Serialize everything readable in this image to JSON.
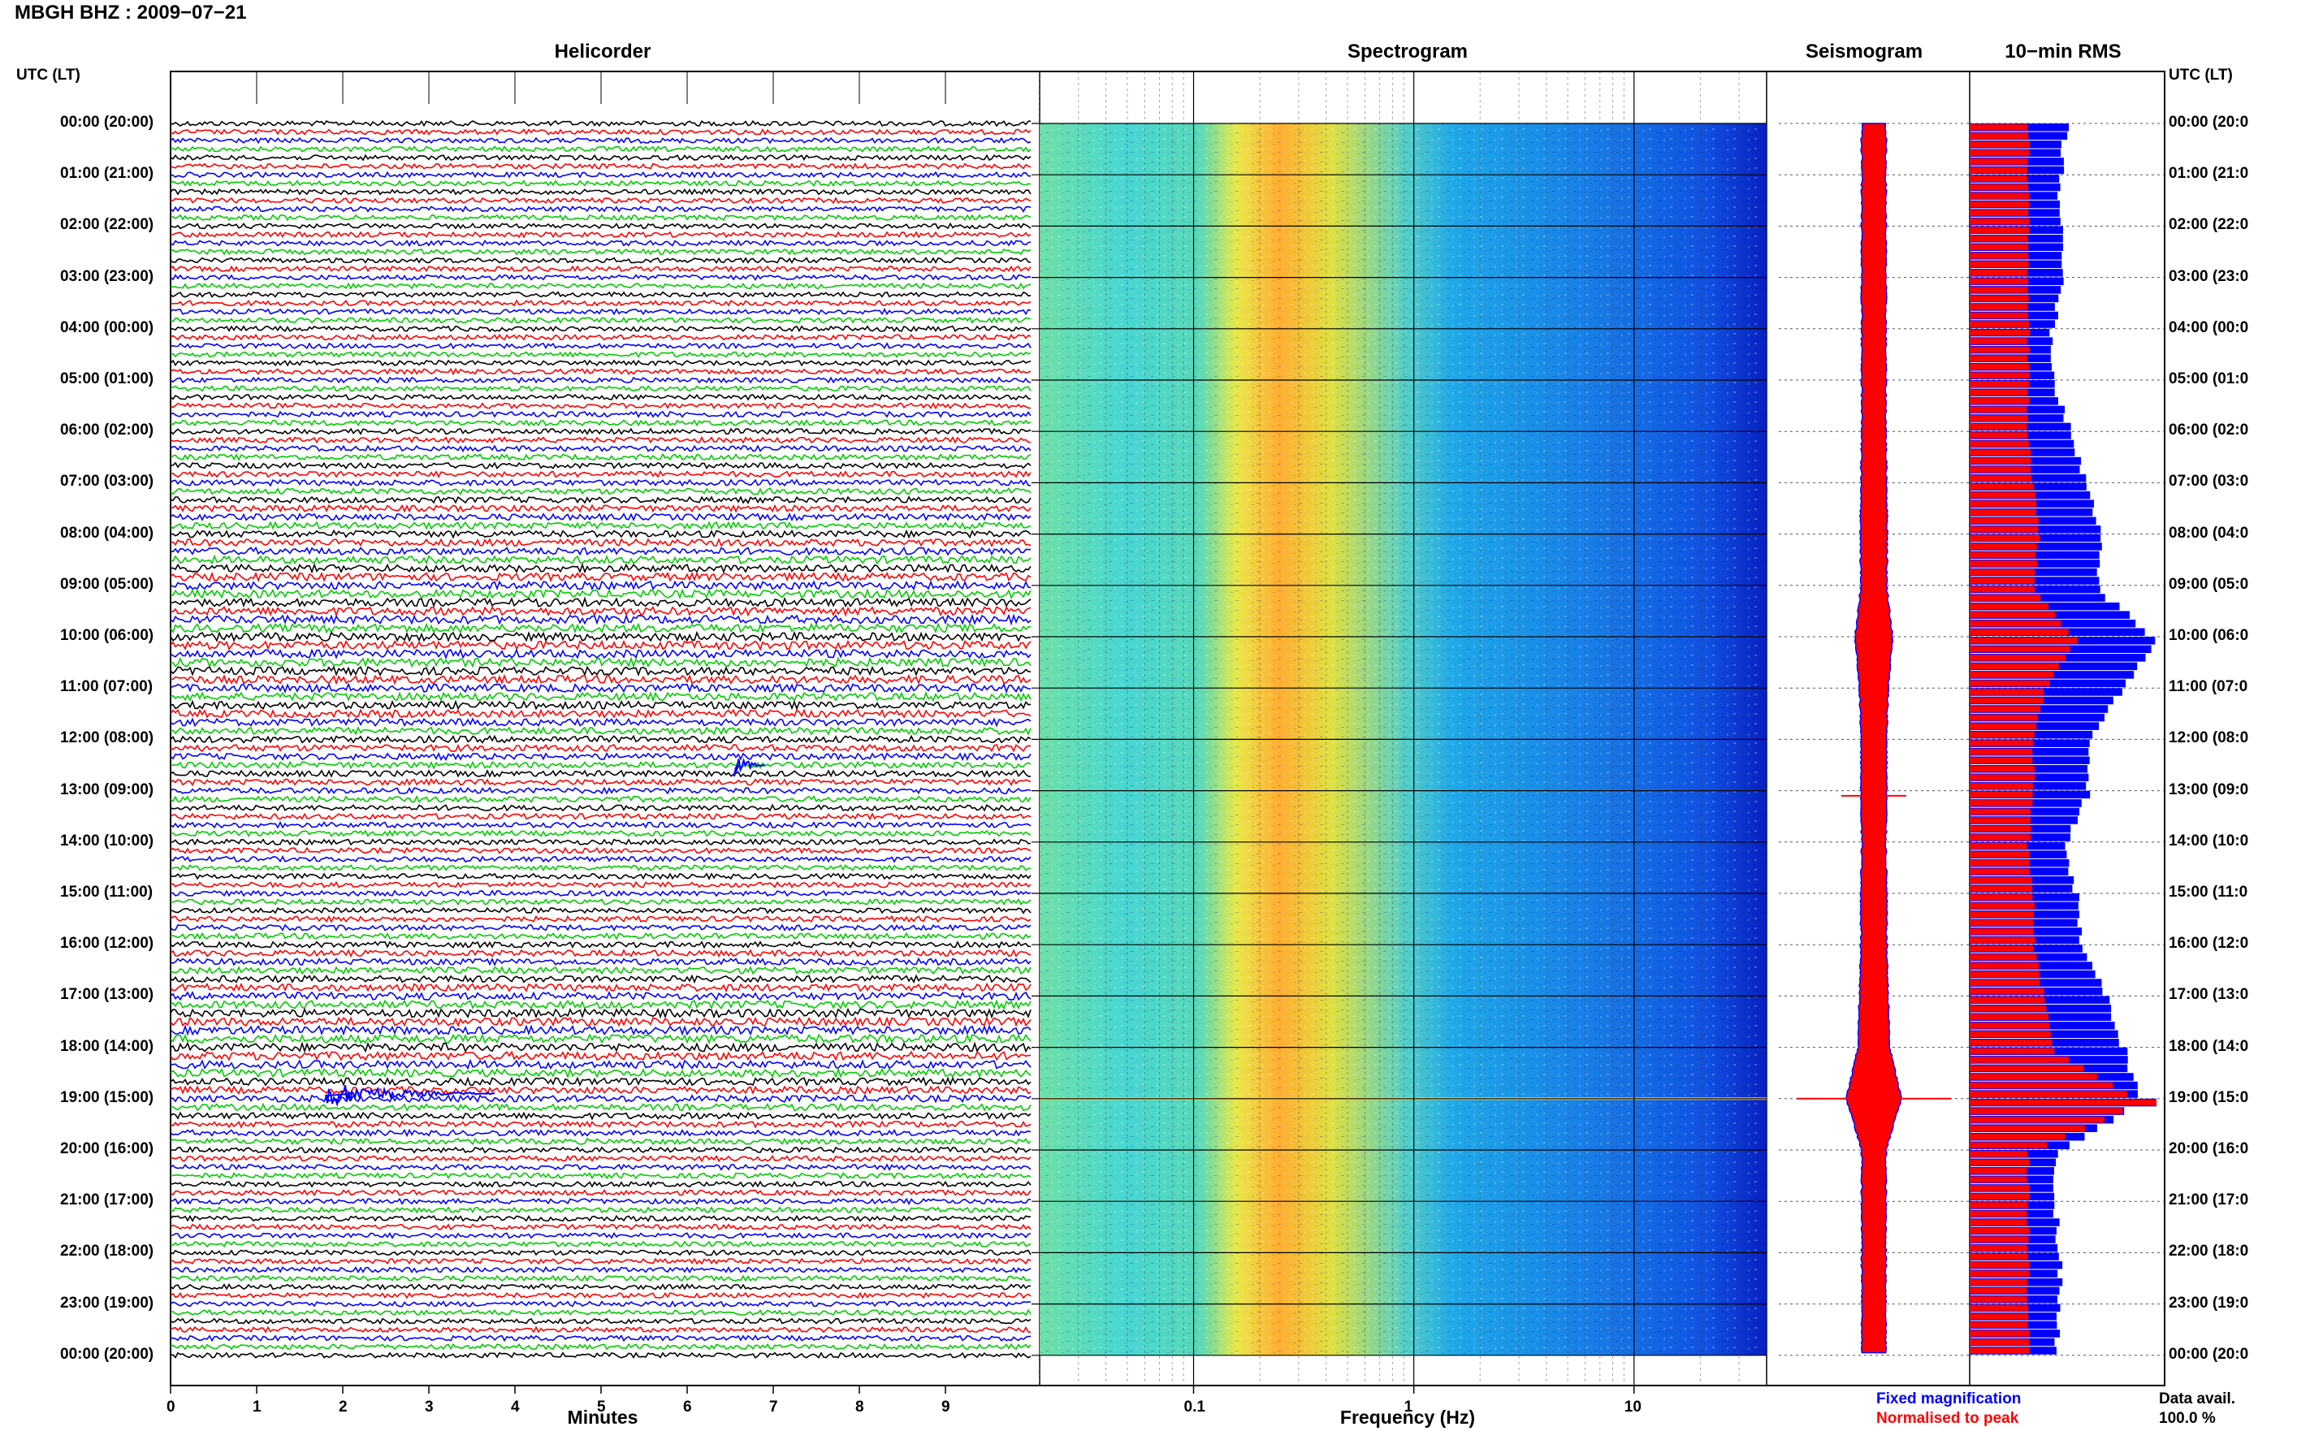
{
  "header": {
    "station_title": "MBGH BHZ : 2009−07−21"
  },
  "panels": {
    "helicorder": "Helicorder",
    "spectrogram": "Spectrogram",
    "seismogram": "Seismogram",
    "rms": "10−min RMS"
  },
  "time_axis_label": "UTC (LT)",
  "hour_labels": [
    "00:00 (20:00)",
    "01:00 (21:00)",
    "02:00 (22:00)",
    "03:00 (23:00)",
    "04:00 (00:00)",
    "05:00 (01:00)",
    "06:00 (02:00)",
    "07:00 (03:00)",
    "08:00 (04:00)",
    "09:00 (05:00)",
    "10:00 (06:00)",
    "11:00 (07:00)",
    "12:00 (08:00)",
    "13:00 (09:00)",
    "14:00 (10:00)",
    "15:00 (11:00)",
    "16:00 (12:00)",
    "17:00 (13:00)",
    "18:00 (14:00)",
    "19:00 (15:00)",
    "20:00 (16:00)",
    "21:00 (17:00)",
    "22:00 (18:00)",
    "23:00 (19:00)",
    "00:00 (20:00)"
  ],
  "right_hour_labels": [
    "00:00 (20:0",
    "01:00 (21:0",
    "02:00 (22:0",
    "03:00 (23:0",
    "04:00 (00:0",
    "05:00 (01:0",
    "06:00 (02:0",
    "07:00 (03:0",
    "08:00 (04:0",
    "09:00 (05:0",
    "10:00 (06:0",
    "11:00 (07:0",
    "12:00 (08:0",
    "13:00 (09:0",
    "14:00 (10:0",
    "15:00 (11:0",
    "16:00 (12:0",
    "17:00 (13:0",
    "18:00 (14:0",
    "19:00 (15:0",
    "20:00 (16:0",
    "21:00 (17:0",
    "22:00 (18:0",
    "23:00 (19:0",
    "00:00 (20:0"
  ],
  "helicorder_axis": {
    "title": "Minutes",
    "ticks": [
      "0",
      "1",
      "2",
      "3",
      "4",
      "5",
      "6",
      "7",
      "8",
      "9"
    ]
  },
  "spectrogram_axis": {
    "title": "Frequency (Hz)",
    "ticks": [
      "0.1",
      "1",
      "10"
    ]
  },
  "legend": {
    "fixed": "Fixed magnification",
    "normalised": "Normalised to peak"
  },
  "data_availability": {
    "label": "Data avail.",
    "value": "100.0 %"
  },
  "colors": {
    "fixed": "#0000ff",
    "normalised": "#ff0000",
    "trace_cycle": [
      "#000000",
      "#ff0000",
      "#0000ff",
      "#00cc00"
    ]
  },
  "chart_data": [
    {
      "type": "line",
      "title": "Helicorder",
      "xlabel": "Minutes",
      "xlim": [
        0,
        10
      ],
      "ylabel": "UTC (LT)",
      "grid": true,
      "lines_per_hour": 6,
      "events": [
        {
          "hour": 12.5,
          "minute": 6.6
        },
        {
          "hour": 18.9,
          "minute": 2.1
        }
      ]
    },
    {
      "type": "heatmap",
      "title": "Spectrogram",
      "xlabel": "Frequency (Hz)",
      "x_scale": "log",
      "xlim": [
        0.02,
        40
      ],
      "ylim_hours": [
        0,
        24
      ],
      "peak_frequency_hz": 0.3
    },
    {
      "type": "line",
      "title": "Seismogram",
      "events_hours": [
        13.1,
        19.0
      ]
    },
    {
      "type": "bar",
      "title": "10−min RMS",
      "orientation": "horizontal",
      "hours": [
        0,
        1,
        2,
        3,
        4,
        5,
        6,
        7,
        8,
        9,
        10,
        11,
        12,
        13,
        14,
        15,
        16,
        17,
        18,
        19,
        20,
        21,
        22,
        23,
        24
      ],
      "series": [
        {
          "name": "Fixed magnification",
          "values": [
            1.8,
            1.7,
            1.7,
            1.8,
            1.5,
            1.6,
            1.9,
            2.2,
            2.5,
            2.4,
            3.5,
            2.8,
            2.2,
            2.2,
            1.8,
            2.0,
            2.1,
            2.6,
            2.9,
            3.2,
            1.6,
            1.6,
            1.7,
            1.7,
            1.6
          ]
        },
        {
          "name": "Normalised to peak",
          "values": [
            1.1,
            1.1,
            1.1,
            1.1,
            1.1,
            1.1,
            1.1,
            1.2,
            1.3,
            1.2,
            2.0,
            1.4,
            1.2,
            1.2,
            1.1,
            1.2,
            1.2,
            1.4,
            1.6,
            3.2,
            1.1,
            1.1,
            1.1,
            1.1,
            1.1
          ]
        }
      ]
    }
  ]
}
